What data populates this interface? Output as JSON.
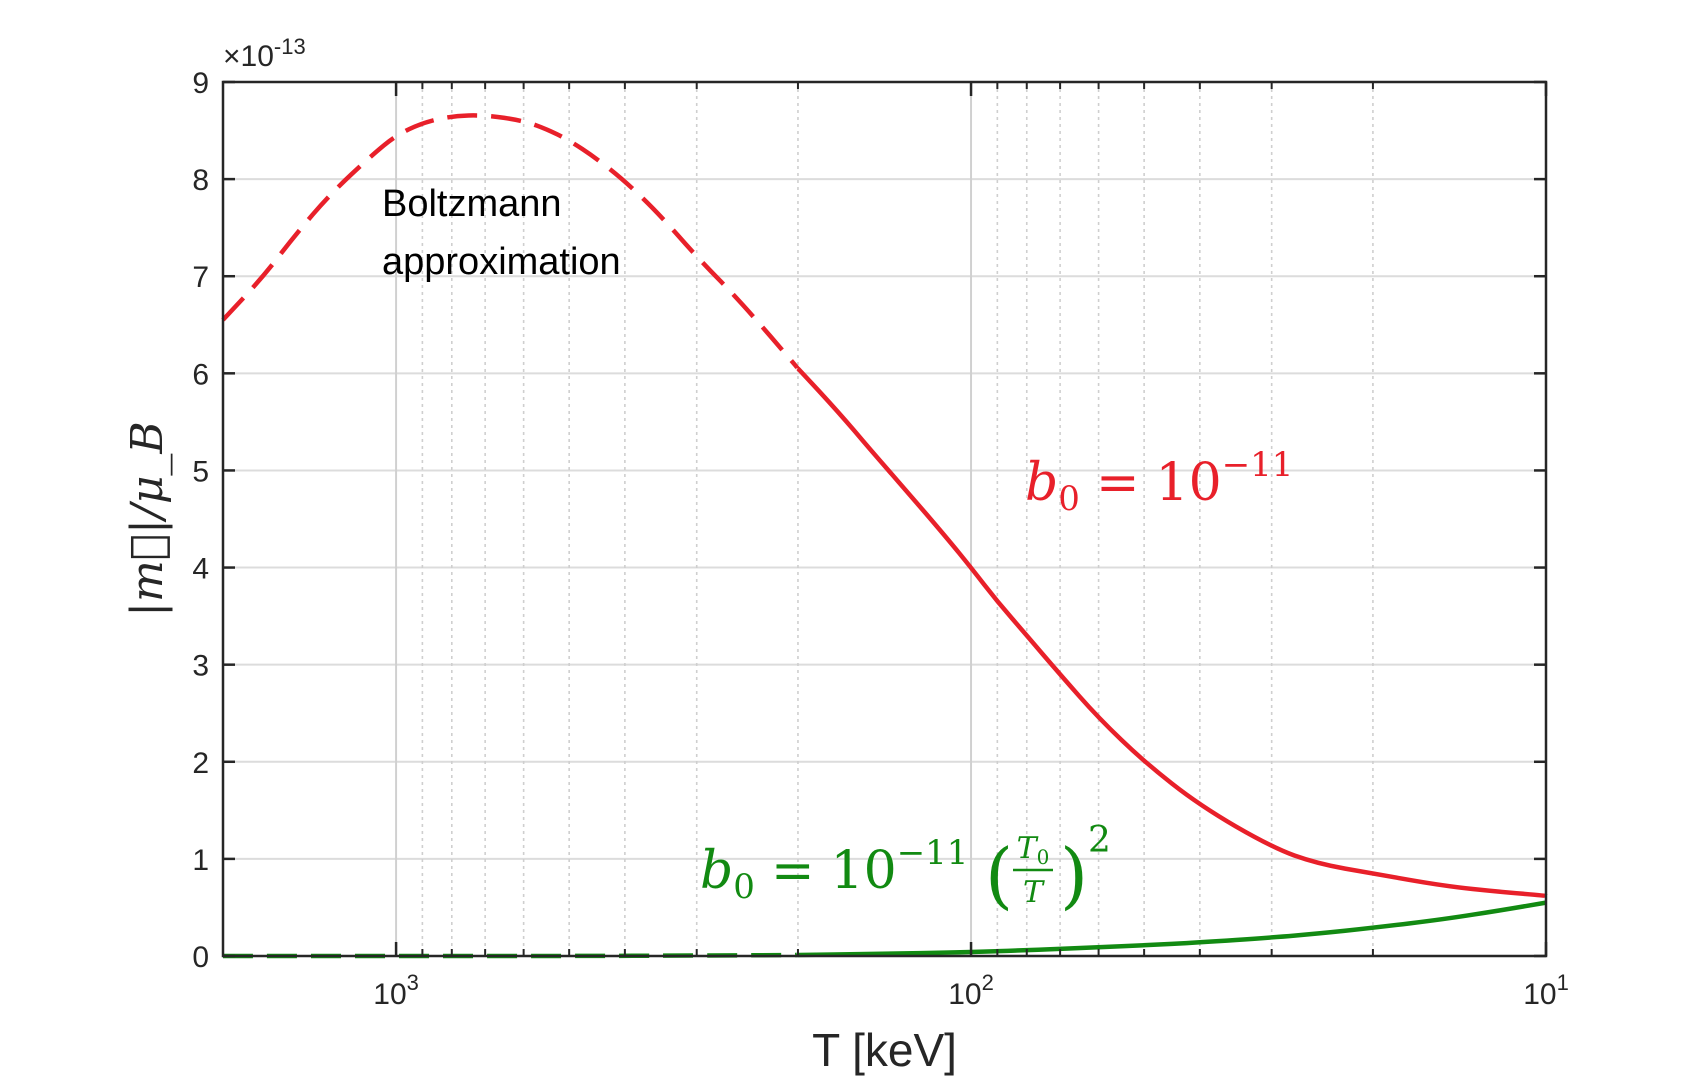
{
  "chart_data": {
    "type": "line",
    "xlabel": "T [keV]",
    "ylabel": "|m⃗|/μ_B",
    "y_exponent_label": "×10",
    "y_exponent_power": "-13",
    "x_scale": "log",
    "x_reversed": true,
    "xlim": [
      2000,
      10
    ],
    "ylim": [
      0,
      9
    ],
    "grid": true,
    "x_tick_labels": [
      {
        "value": 1000,
        "base": "10",
        "power": "3"
      },
      {
        "value": 100,
        "base": "10",
        "power": "2"
      },
      {
        "value": 10,
        "base": "10",
        "power": "1"
      }
    ],
    "y_ticks": [
      0,
      1,
      2,
      3,
      4,
      5,
      6,
      7,
      8,
      9
    ],
    "y_tick_labels": [
      "0",
      "1",
      "2",
      "3",
      "4",
      "5",
      "6",
      "7",
      "8",
      "9"
    ],
    "annotation": "Boltzmann\napproximation",
    "series": [
      {
        "label": "b0 = 10^-11",
        "label_parts": {
          "var": "b",
          "sub": "0",
          "eq": "=",
          "base": "10",
          "sup": "−11"
        },
        "color": "#e8202a",
        "dashed_until_T": 200,
        "x": [
          2000,
          1700,
          1500,
          1300,
          1100,
          1000,
          900,
          800,
          700,
          600,
          550,
          500,
          450,
          400,
          350,
          300,
          250,
          200,
          170,
          150,
          130,
          110,
          100,
          90,
          80,
          70,
          60,
          50,
          40,
          30,
          25,
          20,
          15,
          12,
          10
        ],
        "y": [
          6.55,
          7.0,
          7.42,
          7.85,
          8.25,
          8.45,
          8.58,
          8.65,
          8.66,
          8.6,
          8.52,
          8.4,
          8.22,
          7.98,
          7.65,
          7.2,
          6.72,
          6.05,
          5.6,
          5.22,
          4.8,
          4.3,
          4.0,
          3.65,
          3.3,
          2.9,
          2.45,
          2.0,
          1.55,
          1.12,
          0.95,
          0.85,
          0.72,
          0.66,
          0.62
        ]
      },
      {
        "label": "b0 = 10^-11 (T0/T)^2",
        "label_parts": {
          "var": "b",
          "sub": "0",
          "eq": "=",
          "base": "10",
          "sup": "−11",
          "frac_num": "T",
          "frac_num_sub": "0",
          "frac_den": "T",
          "outer_sup": "2"
        },
        "color": "#128a12",
        "dashed_until_T": 200,
        "x": [
          2000,
          1000,
          500,
          300,
          200,
          150,
          100,
          80,
          60,
          50,
          40,
          30,
          25,
          20,
          15,
          12,
          10
        ],
        "y": [
          0.0,
          0.0,
          0.0,
          0.005,
          0.01,
          0.02,
          0.04,
          0.06,
          0.09,
          0.11,
          0.14,
          0.19,
          0.23,
          0.29,
          0.38,
          0.47,
          0.55
        ]
      }
    ]
  }
}
